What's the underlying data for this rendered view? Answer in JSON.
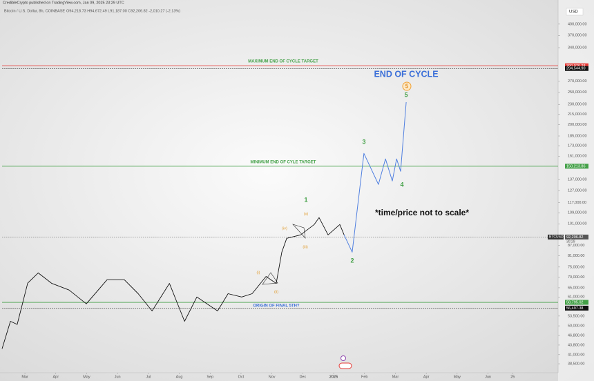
{
  "header": {
    "byline": "CredibleCrypto published on TradingView.com, Jan 09, 2025 23:29 UTC",
    "symbol": "Bitcoin / U.S. Dollar, 8h, COINBASE",
    "ohlc": "O94,218.73  H94,672.49  L91,187.00  C92,206.82  -2,010.27 (-2.13%)"
  },
  "chart_data": {
    "type": "line",
    "log_scale": true,
    "currency": "USD",
    "xlim": [
      -0.74,
      17.27
    ],
    "ylim": [
      36200,
      446000
    ],
    "xticks": [
      {
        "value": 0,
        "label": "Mar"
      },
      {
        "value": 1,
        "label": "Apr"
      },
      {
        "value": 2,
        "label": "May"
      },
      {
        "value": 3,
        "label": "Jun"
      },
      {
        "value": 4,
        "label": "Jul"
      },
      {
        "value": 5,
        "label": "Aug"
      },
      {
        "value": 6,
        "label": "Sep"
      },
      {
        "value": 7,
        "label": "Oct"
      },
      {
        "value": 8,
        "label": "Nov"
      },
      {
        "value": 9,
        "label": "Dec"
      },
      {
        "value": 10,
        "label": "2025"
      },
      {
        "value": 11,
        "label": "Feb"
      },
      {
        "value": 12,
        "label": "Mar"
      },
      {
        "value": 13,
        "label": "Apr"
      },
      {
        "value": 14,
        "label": "May"
      },
      {
        "value": 15,
        "label": "Jun"
      },
      {
        "value": 15.8,
        "label": "25"
      }
    ],
    "yticks": [
      {
        "value": 400000,
        "label": "400,000.00"
      },
      {
        "value": 370000,
        "label": "370,000.00"
      },
      {
        "value": 340000,
        "label": "340,000.00"
      },
      {
        "value": 270000,
        "label": "270,000.00"
      },
      {
        "value": 250000,
        "label": "250,000.00"
      },
      {
        "value": 230000,
        "label": "230,000.00"
      },
      {
        "value": 215000,
        "label": "215,000.00"
      },
      {
        "value": 200000,
        "label": "200,000.00"
      },
      {
        "value": 185000,
        "label": "185,000.00"
      },
      {
        "value": 173000,
        "label": "173,000.00"
      },
      {
        "value": 161000,
        "label": "161,000.00"
      },
      {
        "value": 137000,
        "label": "137,000.00"
      },
      {
        "value": 127000,
        "label": "127,000.00"
      },
      {
        "value": 117000,
        "label": "117,000.00"
      },
      {
        "value": 109000,
        "label": "109,000.00"
      },
      {
        "value": 101000,
        "label": "101,000.00"
      },
      {
        "value": 87000,
        "label": "87,000.00"
      },
      {
        "value": 81000,
        "label": "81,000.00"
      },
      {
        "value": 75000,
        "label": "75,000.00"
      },
      {
        "value": 70000,
        "label": "70,000.00"
      },
      {
        "value": 65000,
        "label": "65,000.00"
      },
      {
        "value": 61000,
        "label": "61,000.00"
      },
      {
        "value": 53500,
        "label": "53,500.00"
      },
      {
        "value": 50000,
        "label": "50,000.00"
      },
      {
        "value": 46800,
        "label": "46,800.00"
      },
      {
        "value": 43800,
        "label": "43,800.00"
      },
      {
        "value": 41000,
        "label": "41,000.00"
      },
      {
        "value": 38500,
        "label": "38,500.00"
      }
    ],
    "series": [
      {
        "color": "#111111",
        "x": [
          -0.74,
          -0.47,
          -0.25,
          0.09,
          0.43,
          0.87,
          1.43,
          1.99,
          2.66,
          3.22,
          3.67,
          4.12,
          4.68,
          5.17,
          5.57,
          6.24,
          6.58,
          7.02,
          7.36,
          7.81,
          8.14,
          8.32,
          8.48,
          8.93,
          9.37,
          9.53,
          9.82,
          10.2,
          10.34
        ],
        "values": [
          42700,
          51600,
          50500,
          67100,
          72000,
          67000,
          64000,
          58200,
          68700,
          68700,
          62400,
          55400,
          67000,
          51600,
          61000,
          55400,
          62400,
          61000,
          62400,
          70300,
          67000,
          83100,
          91400,
          93600,
          100500,
          105400,
          93600,
          100500,
          93600
        ]
      },
      {
        "color": "#4f7fe0",
        "x": [
          10.34,
          10.6,
          10.98,
          11.45,
          11.68,
          11.9,
          12.04,
          12.17,
          12.35
        ],
        "values": [
          93600,
          83100,
          164000,
          132500,
          158000,
          135700,
          158000,
          145000,
          233600
        ]
      }
    ],
    "levels": [
      {
        "value": 300076.28,
        "label": "300,076.28",
        "color": "#e53935"
      },
      {
        "value": 294544.9,
        "label": "294,544.90",
        "color": "#111111"
      },
      {
        "value": 150213.86,
        "label": "150,213.86",
        "color": "#43a047"
      },
      {
        "name": "BTCUSD",
        "value": 92206.82,
        "label": "92,206.82",
        "color": "#444444",
        "countdown": "30:29"
      },
      {
        "value": 58795.02,
        "label": "58,795.02",
        "color": "#43a047"
      },
      {
        "value": 56497.38,
        "label": "56,497.38",
        "color": "#111111"
      }
    ],
    "annotations": {
      "max_target": "MAXIMUM END OF CYCLE TARGET",
      "min_target": "MINIMUM END OF CYLE TARGET",
      "origin": "ORIGIN OF FINAL 5TH?",
      "end": "END OF CYCLE",
      "note": "*time/price not to scale*"
    },
    "wave_labels": [
      "1",
      "2",
      "3",
      "4",
      "5"
    ],
    "circled_wave": "5",
    "subwave_labels": [
      "(i)",
      "(ii)",
      "(iii)",
      "(iv)",
      "(v)"
    ]
  }
}
